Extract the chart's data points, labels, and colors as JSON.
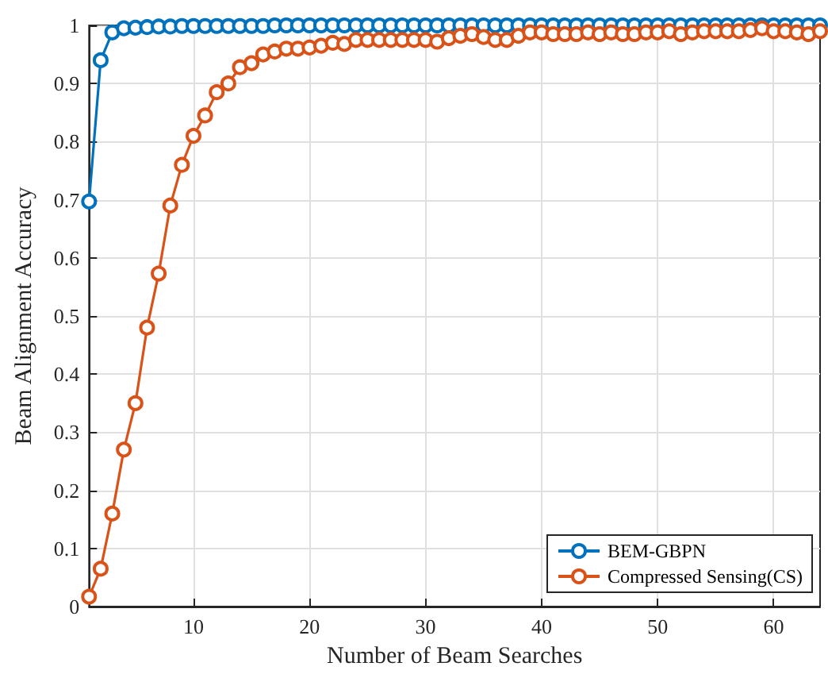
{
  "chart_data": {
    "type": "line",
    "xlabel": "Number of Beam Searches",
    "ylabel": "Beam Alignment Accuracy",
    "x": [
      1,
      2,
      3,
      4,
      5,
      6,
      7,
      8,
      9,
      10,
      11,
      12,
      13,
      14,
      15,
      16,
      17,
      18,
      19,
      20,
      21,
      22,
      23,
      24,
      25,
      26,
      27,
      28,
      29,
      30,
      31,
      32,
      33,
      34,
      35,
      36,
      37,
      38,
      39,
      40,
      41,
      42,
      43,
      44,
      45,
      46,
      47,
      48,
      49,
      50,
      51,
      52,
      53,
      54,
      55,
      56,
      57,
      58,
      59,
      60,
      61,
      62,
      63,
      64
    ],
    "series": [
      {
        "name": "BEM-GBPN",
        "color": "#0072bd",
        "values": [
          0.697,
          0.94,
          0.988,
          0.995,
          0.996,
          0.997,
          0.998,
          0.998,
          0.999,
          0.999,
          0.999,
          0.999,
          0.999,
          0.999,
          0.999,
          0.999,
          1,
          1,
          1,
          1,
          1,
          1,
          1,
          1,
          1,
          1,
          1,
          1,
          1,
          1,
          1,
          1,
          1,
          1,
          1,
          1,
          1,
          1,
          1,
          1,
          1,
          1,
          1,
          1,
          1,
          1,
          1,
          1,
          1,
          1,
          1,
          1,
          1,
          1,
          1,
          1,
          1,
          1,
          1,
          1,
          1,
          1,
          1,
          1
        ]
      },
      {
        "name": "Compressed Sensing(CS)",
        "color": "#d95319",
        "values": [
          0.017,
          0.065,
          0.16,
          0.27,
          0.35,
          0.48,
          0.573,
          0.69,
          0.76,
          0.81,
          0.845,
          0.885,
          0.9,
          0.928,
          0.935,
          0.95,
          0.955,
          0.96,
          0.96,
          0.962,
          0.965,
          0.97,
          0.968,
          0.975,
          0.975,
          0.975,
          0.975,
          0.975,
          0.975,
          0.975,
          0.972,
          0.978,
          0.982,
          0.985,
          0.98,
          0.975,
          0.975,
          0.982,
          0.988,
          0.988,
          0.985,
          0.985,
          0.985,
          0.988,
          0.985,
          0.988,
          0.985,
          0.985,
          0.988,
          0.988,
          0.99,
          0.985,
          0.988,
          0.99,
          0.99,
          0.99,
          0.99,
          0.992,
          0.995,
          0.99,
          0.99,
          0.988,
          0.985,
          0.99
        ]
      }
    ],
    "xlim": [
      1,
      64
    ],
    "xticks": [
      10,
      20,
      30,
      40,
      50,
      60
    ],
    "ylim": [
      0,
      1
    ],
    "yticks": [
      0,
      0.1,
      0.2,
      0.3,
      0.4,
      0.5,
      0.6,
      0.7,
      0.8,
      0.9,
      1
    ],
    "grid": true,
    "legend": "bottom right",
    "marker": "circle",
    "line_style": "solid"
  }
}
